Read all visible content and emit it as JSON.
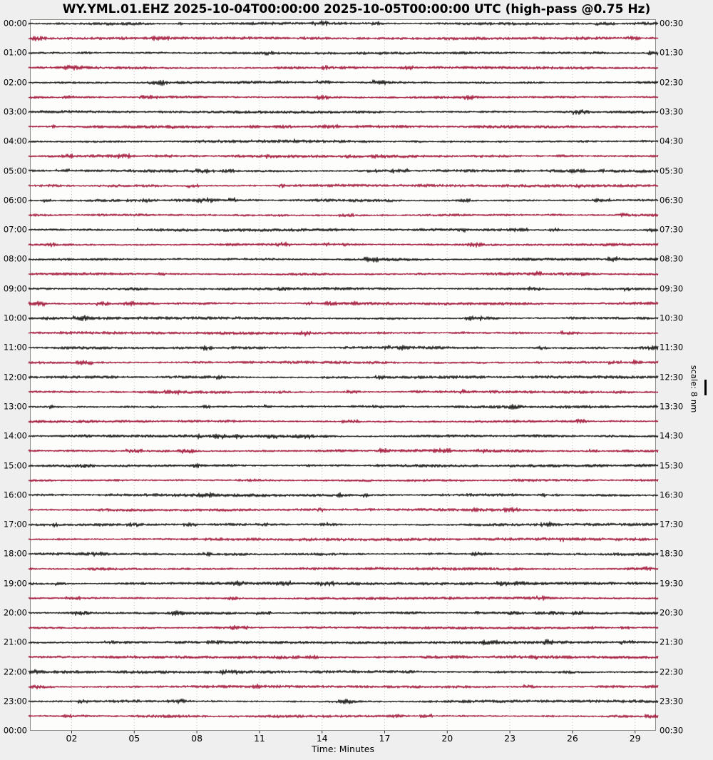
{
  "title": "WY.YML.01.EHZ 2025-10-04T00:00:00 2025-10-05T00:00:00 UTC (high-pass @0.75 Hz)",
  "x_axis": {
    "title": "Time: Minutes",
    "tick_labels": [
      "02",
      "05",
      "08",
      "11",
      "14",
      "17",
      "20",
      "23",
      "26",
      "29"
    ],
    "tick_minutes": [
      2,
      5,
      8,
      11,
      14,
      17,
      20,
      23,
      26,
      29
    ]
  },
  "left_time_labels": [
    "00:00",
    "01:00",
    "02:00",
    "03:00",
    "04:00",
    "05:00",
    "06:00",
    "07:00",
    "08:00",
    "09:00",
    "10:00",
    "11:00",
    "12:00",
    "13:00",
    "14:00",
    "15:00",
    "16:00",
    "17:00",
    "18:00",
    "19:00",
    "20:00",
    "21:00",
    "22:00",
    "23:00",
    "00:00"
  ],
  "right_time_labels": [
    "00:30",
    "01:30",
    "02:30",
    "03:30",
    "04:30",
    "05:30",
    "06:30",
    "07:30",
    "08:30",
    "09:30",
    "10:30",
    "11:30",
    "12:30",
    "13:30",
    "14:30",
    "15:30",
    "16:30",
    "17:30",
    "18:30",
    "19:30",
    "20:30",
    "21:30",
    "22:30",
    "23:30",
    "00:30"
  ],
  "scale": {
    "label": "scale: 8 nm",
    "nm": 8
  },
  "colors": {
    "background": "#efefef",
    "plot_background": "#fdfdfb",
    "frame": "#8a8a8a",
    "grid": "#c3c3c3",
    "trace_dark": "#161616",
    "trace_red": "#a3173a",
    "text": "#000000"
  },
  "chart_data": {
    "type": "line",
    "subtype": "helicorder-dayplot",
    "station_id": "WY.YML.01.EHZ",
    "time_range_utc": [
      "2025-10-04T00:00:00",
      "2025-10-05T00:00:00"
    ],
    "filter": "high-pass @0.75 Hz",
    "xlabel": "Time: Minutes",
    "x_range_minutes": [
      0,
      30
    ],
    "x_ticks_minutes": [
      2,
      5,
      8,
      11,
      14,
      17,
      20,
      23,
      26,
      29
    ],
    "minutes_per_row": 30,
    "num_rows": 48,
    "row_color_alternation": [
      "#161616",
      "#a3173a"
    ],
    "row_start_hours_left_axis": [
      "00:00",
      "01:00",
      "02:00",
      "03:00",
      "04:00",
      "05:00",
      "06:00",
      "07:00",
      "08:00",
      "09:00",
      "10:00",
      "11:00",
      "12:00",
      "13:00",
      "14:00",
      "15:00",
      "16:00",
      "17:00",
      "18:00",
      "19:00",
      "20:00",
      "21:00",
      "22:00",
      "23:00"
    ],
    "row_end_hours_right_axis": [
      "00:30",
      "01:30",
      "02:30",
      "03:30",
      "04:30",
      "05:30",
      "06:30",
      "07:30",
      "08:30",
      "09:30",
      "10:30",
      "11:30",
      "12:30",
      "13:30",
      "14:30",
      "15:30",
      "16:30",
      "17:30",
      "18:30",
      "19:30",
      "20:30",
      "21:30",
      "22:30",
      "23:30"
    ],
    "amplitude_scale_nm": 8,
    "grid": "vertical dotted gridlines every 3 minutes",
    "legend": "none",
    "waveform_character": "continuous uniform microseismic background noise on all 48 rows, peak-to-peak roughly half the 8 nm scale bar; no distinct earthquake events visible"
  }
}
